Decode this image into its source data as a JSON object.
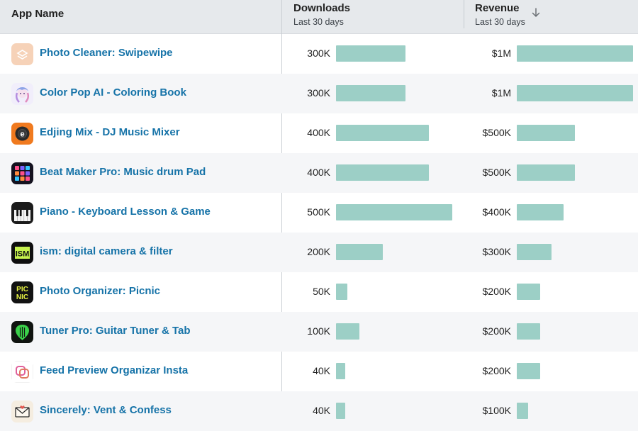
{
  "header": {
    "app_label": "App Name",
    "downloads_label": "Downloads",
    "downloads_sub": "Last 30 days",
    "revenue_label": "Revenue",
    "revenue_sub": "Last 30 days",
    "sort_icon": "arrow-down-icon"
  },
  "colors": {
    "bar": "#9ccfc6",
    "link": "#1673a8",
    "header_bg": "#e6e9ec"
  },
  "rows": [
    {
      "name": "Photo Cleaner: Swipewipe",
      "icon": "photo-cleaner-icon",
      "downloads": "300K",
      "downloads_k": 300,
      "revenue": "$1M",
      "revenue_k": 1000
    },
    {
      "name": "Color Pop AI - Coloring Book",
      "icon": "color-pop-icon",
      "downloads": "300K",
      "downloads_k": 300,
      "revenue": "$1M",
      "revenue_k": 1000
    },
    {
      "name": "Edjing Mix - DJ Music Mixer",
      "icon": "edjing-icon",
      "downloads": "400K",
      "downloads_k": 400,
      "revenue": "$500K",
      "revenue_k": 500
    },
    {
      "name": "Beat Maker Pro: Music drum Pad",
      "icon": "drum-pad-icon",
      "downloads": "400K",
      "downloads_k": 400,
      "revenue": "$500K",
      "revenue_k": 500
    },
    {
      "name": "Piano - Keyboard Lesson & Game",
      "icon": "piano-icon",
      "downloads": "500K",
      "downloads_k": 500,
      "revenue": "$400K",
      "revenue_k": 400
    },
    {
      "name": "ism: digital camera & filter",
      "icon": "ism-camera-icon",
      "downloads": "200K",
      "downloads_k": 200,
      "revenue": "$300K",
      "revenue_k": 300
    },
    {
      "name": "Photo Organizer: Picnic",
      "icon": "picnic-icon",
      "downloads": "50K",
      "downloads_k": 50,
      "revenue": "$200K",
      "revenue_k": 200
    },
    {
      "name": "Tuner Pro: Guitar Tuner & Tab",
      "icon": "guitar-tuner-icon",
      "downloads": "100K",
      "downloads_k": 100,
      "revenue": "$200K",
      "revenue_k": 200
    },
    {
      "name": "Feed Preview Organizar Insta",
      "icon": "feed-preview-icon",
      "downloads": "40K",
      "downloads_k": 40,
      "revenue": "$200K",
      "revenue_k": 200
    },
    {
      "name": "Sincerely: Vent & Confess",
      "icon": "envelope-icon",
      "downloads": "40K",
      "downloads_k": 40,
      "revenue": "$100K",
      "revenue_k": 100
    }
  ]
}
